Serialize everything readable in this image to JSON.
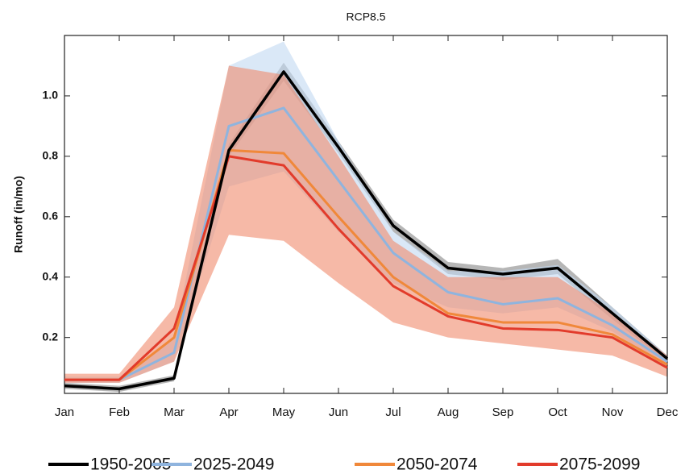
{
  "chart_data": {
    "type": "line",
    "title": "RCP8.5",
    "y_label": "Runoff (in/mo)",
    "categories": [
      "Jan",
      "Feb",
      "Mar",
      "Apr",
      "May",
      "Jun",
      "Jul",
      "Aug",
      "Sep",
      "Oct",
      "Nov",
      "Dec"
    ],
    "ylim": [
      0.015,
      1.2
    ],
    "yticks": [
      0.2,
      0.4,
      0.6,
      0.8,
      {
        "value": 1,
        "label": "1.0"
      }
    ],
    "series": [
      {
        "name": "1950-2005",
        "color": "#000000",
        "band_color": "#7a7a7a",
        "values": [
          0.04,
          0.03,
          0.065,
          0.82,
          1.08,
          0.83,
          0.57,
          0.43,
          0.41,
          0.43,
          0.28,
          0.13
        ],
        "lower": [
          0.03,
          0.02,
          0.055,
          0.8,
          1.05,
          0.81,
          0.55,
          0.41,
          0.39,
          0.41,
          0.26,
          0.12
        ],
        "upper": [
          0.05,
          0.04,
          0.075,
          0.84,
          1.11,
          0.85,
          0.59,
          0.45,
          0.43,
          0.46,
          0.3,
          0.14
        ]
      },
      {
        "name": "2025-2049",
        "color": "#8fb4de",
        "band_color": "#c2d9f1",
        "values": [
          0.06,
          0.06,
          0.15,
          0.9,
          0.96,
          0.72,
          0.48,
          0.35,
          0.31,
          0.33,
          0.24,
          0.12
        ],
        "lower": [
          0.05,
          0.05,
          0.12,
          0.7,
          0.75,
          0.55,
          0.38,
          0.3,
          0.28,
          0.3,
          0.22,
          0.1
        ],
        "upper": [
          0.07,
          0.07,
          0.2,
          1.1,
          1.18,
          0.85,
          0.55,
          0.42,
          0.42,
          0.44,
          0.3,
          0.14
        ]
      },
      {
        "name": "2050-2074",
        "color": "#f0883a",
        "values": [
          0.06,
          0.06,
          0.2,
          0.82,
          0.81,
          0.6,
          0.4,
          0.28,
          0.25,
          0.25,
          0.21,
          0.11
        ]
      },
      {
        "name": "2075-2099",
        "color": "#e23b2b",
        "band_color": "#f08a6c",
        "values": [
          0.06,
          0.06,
          0.23,
          0.8,
          0.77,
          0.56,
          0.37,
          0.27,
          0.23,
          0.225,
          0.2,
          0.1
        ],
        "lower": [
          0.05,
          0.05,
          0.12,
          0.54,
          0.52,
          0.38,
          0.25,
          0.2,
          0.18,
          0.16,
          0.14,
          0.07
        ],
        "upper": [
          0.08,
          0.08,
          0.3,
          1.1,
          1.07,
          0.8,
          0.52,
          0.4,
          0.4,
          0.4,
          0.28,
          0.14
        ]
      }
    ]
  }
}
